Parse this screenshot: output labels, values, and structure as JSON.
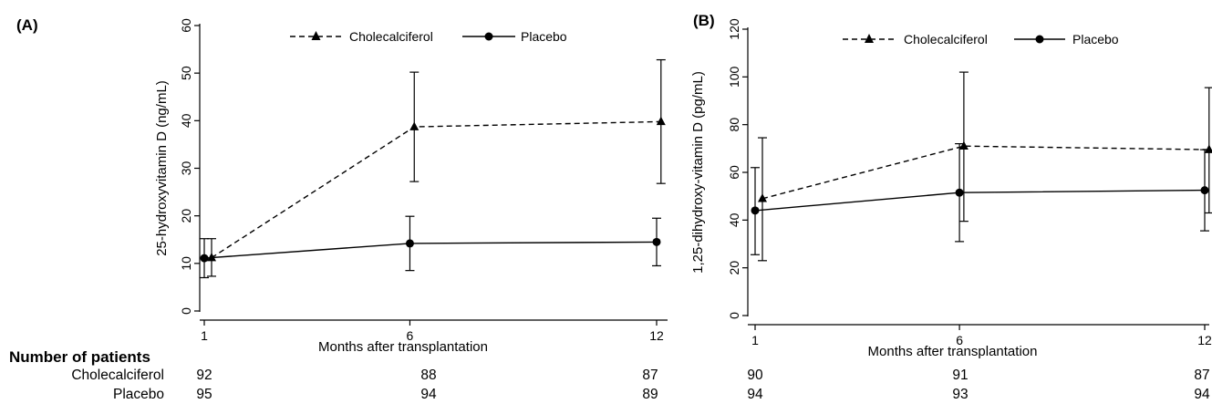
{
  "numbers_header": "Number of patients",
  "groups": [
    "Cholecalciferol",
    "Placebo"
  ],
  "chart_data": [
    {
      "type": "line",
      "panel_label": "(A)",
      "xlabel": "Months after transplantation",
      "ylabel": "25-hydroxyvitamin D (ng/mL)",
      "x_ticks": [
        "1",
        "6",
        "12"
      ],
      "y_ticks": [
        "0",
        "10",
        "20",
        "30",
        "40",
        "50",
        "60"
      ],
      "xlim": [
        1,
        12
      ],
      "ylim": [
        0,
        60
      ],
      "series": [
        {
          "name": "Cholecalciferol",
          "line_style": "dashed",
          "marker": "triangle",
          "x": [
            1,
            6,
            12
          ],
          "values": [
            11.2,
            38.7,
            39.8
          ],
          "err_low": [
            7.3,
            27.2,
            26.8
          ],
          "err_high": [
            15.2,
            50.2,
            52.8
          ]
        },
        {
          "name": "Placebo",
          "line_style": "solid",
          "marker": "circle",
          "x": [
            1,
            6,
            12
          ],
          "values": [
            11.1,
            14.2,
            14.5
          ],
          "err_low": [
            7.0,
            8.5,
            9.5
          ],
          "err_high": [
            15.2,
            19.9,
            19.5
          ]
        }
      ],
      "patients": {
        "Cholecalciferol": [
          "92",
          "88",
          "87"
        ],
        "Placebo": [
          "95",
          "94",
          "89"
        ]
      }
    },
    {
      "type": "line",
      "panel_label": "(B)",
      "xlabel": "Months after transplantation",
      "ylabel": "1,25-dihydroxy-vitamin D (pg/mL)",
      "x_ticks": [
        "1",
        "6",
        "12"
      ],
      "y_ticks": [
        "0",
        "20",
        "40",
        "60",
        "80",
        "100",
        "120"
      ],
      "xlim": [
        1,
        12
      ],
      "ylim": [
        0,
        120
      ],
      "series": [
        {
          "name": "Cholecalciferol",
          "line_style": "dashed",
          "marker": "triangle",
          "x": [
            1,
            6,
            12
          ],
          "values": [
            49,
            71,
            69.5
          ],
          "err_low": [
            23,
            39.5,
            43
          ],
          "err_high": [
            74.5,
            102,
            95.5
          ]
        },
        {
          "name": "Placebo",
          "line_style": "solid",
          "marker": "circle",
          "x": [
            1,
            6,
            12
          ],
          "values": [
            44,
            51.5,
            52.5
          ],
          "err_low": [
            25.5,
            31,
            35.5
          ],
          "err_high": [
            62,
            72,
            69.5
          ]
        }
      ],
      "patients": {
        "Cholecalciferol": [
          "90",
          "91",
          "87"
        ],
        "Placebo": [
          "94",
          "93",
          "94"
        ]
      }
    }
  ]
}
